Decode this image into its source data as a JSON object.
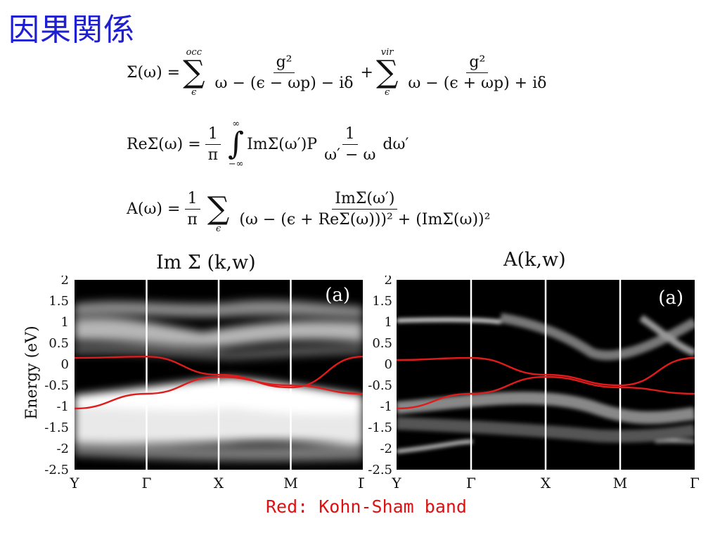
{
  "title": "因果関係",
  "equations": {
    "eq1": {
      "lhs": "Σ(ω) =",
      "sum1_top": "occ",
      "sum1_bottom": "ϵ",
      "num1": "g²",
      "den1": "ω − (ϵ − ωp) − iδ",
      "plus": "+",
      "sum2_top": "vir",
      "sum2_bottom": "ϵ",
      "num2": "g²",
      "den2": "ω − (ϵ + ωp) + iδ"
    },
    "eq2": {
      "lhs": "ReΣ(ω) =",
      "frac_num": "1",
      "frac_den": "π",
      "int_top": "∞",
      "int_bottom": "−∞",
      "body": "ImΣ(ω′)P",
      "num": "1",
      "den": "ω′ − ω",
      "tail": "dω′"
    },
    "eq3": {
      "lhs": "A(ω) =",
      "frac_num": "1",
      "frac_den": "π",
      "sum_bottom": "ϵ",
      "num": "ImΣ(ω′)",
      "den": "(ω − (ϵ + ReΣ(ω)))² + (ImΣ(ω))²"
    }
  },
  "plot_left": {
    "label": "Im Σ (k,w)",
    "panel_tag": "(a)",
    "ylabel": "Energy (eV)"
  },
  "plot_right": {
    "label": "A(k,w)",
    "panel_tag": "(a)"
  },
  "footnote": "Red: Kohn-Sham band",
  "chart_data": [
    {
      "type": "heatmap",
      "title": "Im Σ (k,w)",
      "ylabel": "Energy (eV)",
      "ylim": [
        -2.5,
        2
      ],
      "yticks": [
        "2",
        "1.5",
        "1",
        "0.5",
        "0",
        "-0.5",
        "-1",
        "-1.5",
        "-2",
        "-2.5"
      ],
      "xticks": [
        "Y",
        "Γ",
        "X",
        "M",
        "Γ"
      ],
      "series": [
        {
          "name": "Red: Kohn-Sham band",
          "x": [
            0,
            1,
            2,
            3,
            4
          ],
          "y": [
            0.15,
            0.18,
            -0.25,
            -0.55,
            0.18
          ]
        },
        {
          "name": "",
          "x": [
            0,
            1,
            2,
            3,
            4
          ],
          "y": [
            -1.05,
            -0.7,
            -0.3,
            -0.5,
            -0.7
          ]
        }
      ]
    },
    {
      "type": "heatmap",
      "title": "A(k,w)",
      "ylim": [
        -2.5,
        2
      ],
      "yticks": [
        "2",
        "1.5",
        "1",
        "0.5",
        "0",
        "-0.5",
        "-1",
        "-1.5",
        "-2",
        "-2.5"
      ],
      "xticks": [
        "Y",
        "Γ",
        "X",
        "M",
        "Γ"
      ],
      "series": [
        {
          "name": "",
          "x": [
            0,
            1,
            2,
            3,
            4
          ],
          "y": [
            0.1,
            0.15,
            -0.25,
            -0.5,
            0.15
          ]
        },
        {
          "name": "",
          "x": [
            0,
            1,
            2,
            3,
            4
          ],
          "y": [
            -1.05,
            -0.7,
            -0.3,
            -0.55,
            -0.7
          ]
        }
      ]
    }
  ]
}
